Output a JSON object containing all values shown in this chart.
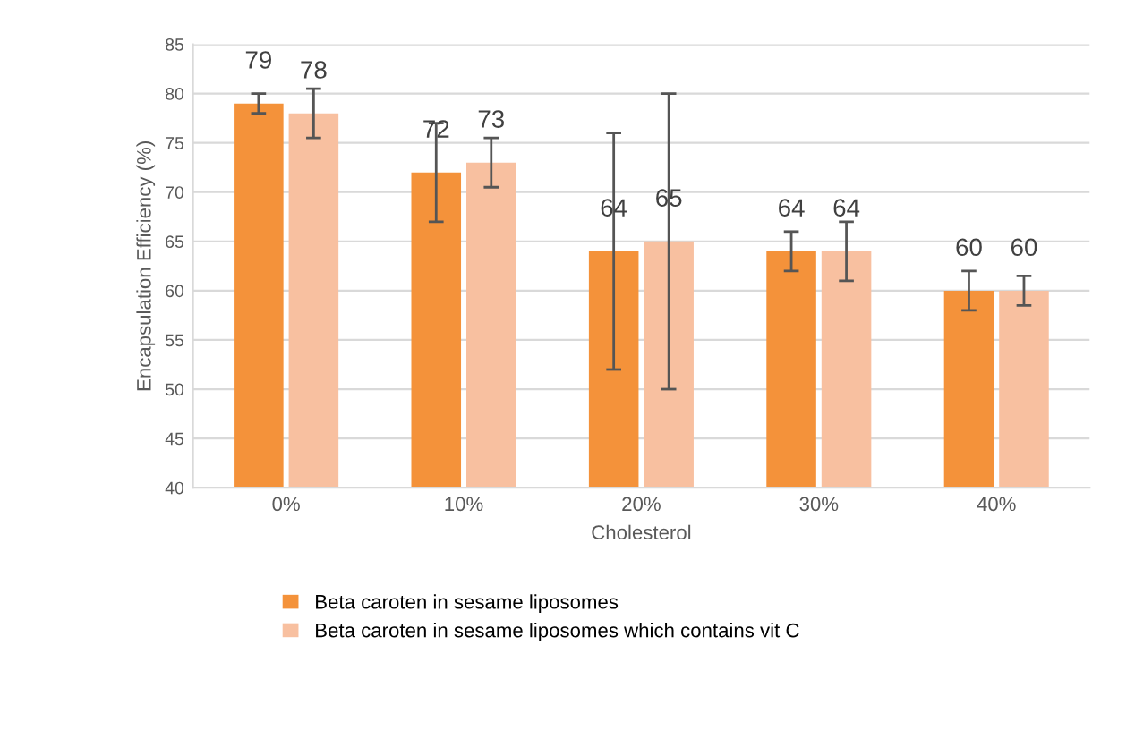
{
  "chart_data": {
    "type": "bar",
    "xlabel": "Cholesterol",
    "ylabel": "Encapsulation Efficiency (%)",
    "categories": [
      "0%",
      "10%",
      "20%",
      "30%",
      "40%"
    ],
    "series": [
      {
        "name": "Beta caroten in sesame liposomes",
        "color": "#f4923a",
        "values": [
          79,
          72,
          64,
          64,
          60
        ],
        "errors": [
          1,
          5,
          12,
          2,
          2
        ]
      },
      {
        "name": "Beta caroten in sesame liposomes which contains vit C",
        "color": "#f8c0a0",
        "values": [
          78,
          73,
          65,
          64,
          60
        ],
        "errors": [
          2.5,
          2.5,
          15,
          3,
          1.5
        ]
      }
    ],
    "ylim": [
      40,
      85
    ],
    "yticks": [
      40,
      45,
      50,
      55,
      60,
      65,
      70,
      75,
      80,
      85
    ],
    "grid": "y",
    "legend": "bottom",
    "data_labels": true
  }
}
